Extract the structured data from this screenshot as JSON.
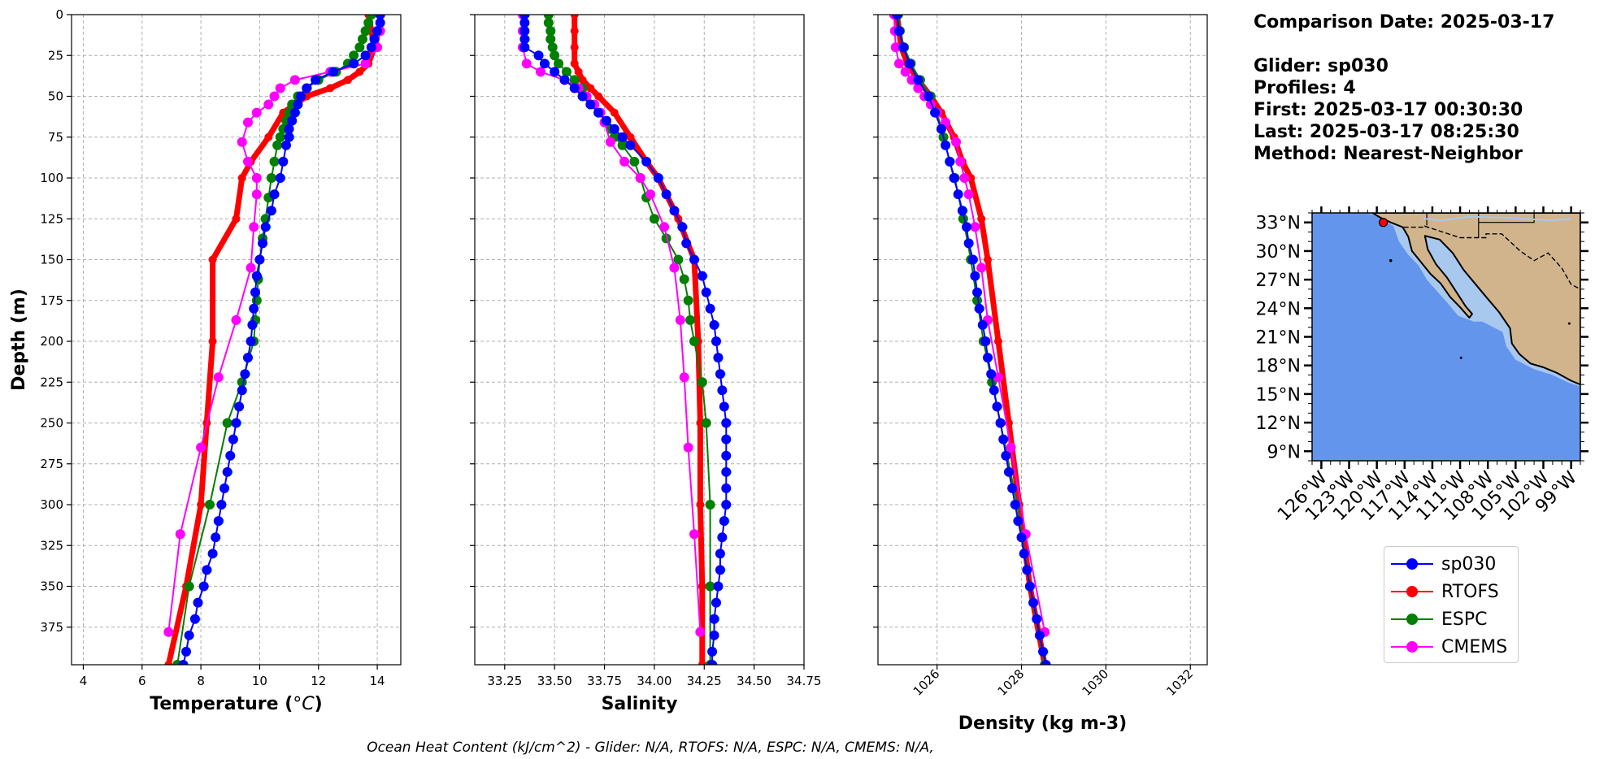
{
  "info": {
    "comparison": "Comparison Date: 2025-03-17",
    "glider": "Glider: sp030",
    "profiles": "Profiles: 4",
    "first": "First: 2025-03-17 00:30:30",
    "last": "Last: 2025-03-17 08:25:30",
    "method": "Method: Nearest-Neighbor"
  },
  "footer": "Ocean Heat Content (kJ/cm^2) - Glider: N/A,  RTOFS: N/A,  ESPC: N/A,  CMEMS: N/A,",
  "colors": {
    "sp030": "#0000ff",
    "RTOFS": "#ff0000",
    "ESPC": "#008000",
    "CMEMS": "#ff00ff",
    "raw": "#00ffff"
  },
  "legend": [
    {
      "name": "sp030",
      "color": "#0000ff"
    },
    {
      "name": "RTOFS",
      "color": "#ff0000"
    },
    {
      "name": "ESPC",
      "color": "#008000"
    },
    {
      "name": "CMEMS",
      "color": "#ff00ff"
    }
  ],
  "chart_data": [
    {
      "type": "line",
      "xlabel": "Temperature (°C)",
      "ylabel": "Depth (m)",
      "xlim": [
        3.6,
        14.8
      ],
      "ylim": [
        0,
        398
      ],
      "xticks": [
        4,
        6,
        8,
        10,
        12,
        14
      ],
      "yticks": [
        0,
        25,
        50,
        75,
        100,
        125,
        150,
        175,
        200,
        225,
        250,
        275,
        300,
        325,
        350,
        375
      ],
      "grid": true,
      "series": [
        {
          "name": "sp030",
          "depth": [
            0,
            5,
            10,
            15,
            20,
            25,
            30,
            35,
            40,
            45,
            50,
            55,
            60,
            65,
            70,
            75,
            80,
            90,
            100,
            110,
            120,
            130,
            140,
            150,
            160,
            170,
            180,
            190,
            200,
            210,
            220,
            230,
            240,
            250,
            260,
            270,
            280,
            290,
            300,
            310,
            320,
            330,
            340,
            350,
            360,
            370,
            380,
            390,
            398
          ],
          "values": [
            14.1,
            14.1,
            14.0,
            13.9,
            13.8,
            13.6,
            13.2,
            12.5,
            11.9,
            11.6,
            11.4,
            11.3,
            11.2,
            11.1,
            11.0,
            11.0,
            10.9,
            10.8,
            10.7,
            10.5,
            10.4,
            10.2,
            10.1,
            10.0,
            9.9,
            9.85,
            9.8,
            9.75,
            9.7,
            9.6,
            9.5,
            9.4,
            9.3,
            9.2,
            9.1,
            9.0,
            8.9,
            8.8,
            8.7,
            8.6,
            8.5,
            8.4,
            8.2,
            8.1,
            7.9,
            7.8,
            7.6,
            7.5,
            7.4
          ]
        },
        {
          "name": "RTOFS",
          "depth": [
            0,
            10,
            20,
            30,
            35,
            40,
            45,
            50,
            60,
            75,
            90,
            100,
            125,
            150,
            200,
            250,
            300,
            350,
            398
          ],
          "values": [
            13.7,
            13.8,
            13.9,
            13.7,
            13.4,
            13.0,
            12.4,
            11.6,
            10.8,
            10.3,
            9.7,
            9.4,
            9.2,
            8.4,
            8.4,
            8.2,
            8.0,
            7.5,
            6.9
          ]
        },
        {
          "name": "ESPC",
          "depth": [
            0,
            5,
            10,
            15,
            20,
            25,
            30,
            35,
            40,
            45,
            50,
            55,
            60,
            65,
            70,
            75,
            80,
            90,
            100,
            112,
            125,
            137,
            150,
            162,
            175,
            187,
            200,
            225,
            250,
            300,
            350,
            398
          ],
          "values": [
            13.8,
            13.7,
            13.6,
            13.5,
            13.4,
            13.2,
            13.0,
            12.6,
            12.0,
            11.6,
            11.3,
            11.1,
            11.0,
            10.9,
            10.8,
            10.7,
            10.6,
            10.5,
            10.4,
            10.3,
            10.2,
            10.1,
            10.0,
            9.95,
            9.9,
            9.85,
            9.8,
            9.4,
            8.9,
            8.3,
            7.6,
            7.2
          ]
        },
        {
          "name": "CMEMS",
          "depth": [
            0,
            10,
            20,
            30,
            35,
            40,
            45,
            50,
            55,
            60,
            66,
            78,
            90,
            100,
            110,
            130,
            155,
            187,
            222,
            265,
            318,
            378
          ],
          "values": [
            14.1,
            14.1,
            14.0,
            13.6,
            12.4,
            11.2,
            10.7,
            10.5,
            10.3,
            9.9,
            9.6,
            9.4,
            9.6,
            9.9,
            9.9,
            9.8,
            9.7,
            9.2,
            8.6,
            8.0,
            7.3,
            6.9
          ]
        }
      ]
    },
    {
      "type": "line",
      "xlabel": "Salinity",
      "xlim": [
        33.1,
        34.75
      ],
      "ylim": [
        0,
        398
      ],
      "xticks": [
        33.25,
        33.5,
        33.75,
        34.0,
        34.25,
        34.5,
        34.75
      ],
      "grid": true,
      "series": [
        {
          "name": "sp030",
          "depth": [
            0,
            5,
            10,
            15,
            20,
            25,
            30,
            35,
            40,
            45,
            50,
            55,
            60,
            65,
            70,
            75,
            80,
            90,
            100,
            110,
            120,
            130,
            140,
            150,
            160,
            170,
            180,
            190,
            200,
            210,
            220,
            230,
            240,
            250,
            260,
            270,
            280,
            290,
            300,
            310,
            320,
            330,
            340,
            350,
            360,
            370,
            380,
            390,
            398
          ],
          "values": [
            33.35,
            33.35,
            33.35,
            33.35,
            33.35,
            33.42,
            33.45,
            33.5,
            33.55,
            33.6,
            33.64,
            33.68,
            33.72,
            33.76,
            33.8,
            33.84,
            33.88,
            33.96,
            34.02,
            34.06,
            34.1,
            34.14,
            34.16,
            34.2,
            34.24,
            34.26,
            34.28,
            34.3,
            34.31,
            34.32,
            34.33,
            34.34,
            34.35,
            34.36,
            34.36,
            34.36,
            34.36,
            34.36,
            34.36,
            34.35,
            34.34,
            34.33,
            34.33,
            34.32,
            34.31,
            34.3,
            34.3,
            34.29,
            34.29
          ]
        },
        {
          "name": "RTOFS",
          "depth": [
            0,
            10,
            20,
            30,
            35,
            40,
            45,
            50,
            60,
            75,
            90,
            100,
            125,
            150,
            200,
            250,
            300,
            350,
            398
          ],
          "values": [
            33.6,
            33.6,
            33.6,
            33.6,
            33.62,
            33.64,
            33.68,
            33.72,
            33.8,
            33.88,
            33.96,
            34.02,
            34.12,
            34.2,
            34.22,
            34.23,
            34.23,
            34.24,
            34.24
          ]
        },
        {
          "name": "ESPC",
          "depth": [
            0,
            5,
            10,
            15,
            20,
            25,
            30,
            35,
            40,
            45,
            50,
            55,
            60,
            65,
            70,
            75,
            80,
            90,
            100,
            112,
            125,
            137,
            150,
            162,
            175,
            187,
            200,
            225,
            250,
            300,
            350,
            398
          ],
          "values": [
            33.47,
            33.47,
            33.48,
            33.48,
            33.49,
            33.5,
            33.52,
            33.56,
            33.6,
            33.64,
            33.66,
            33.68,
            33.72,
            33.76,
            33.78,
            33.8,
            33.84,
            33.9,
            33.93,
            33.96,
            34.0,
            34.06,
            34.12,
            34.15,
            34.17,
            34.18,
            34.2,
            34.24,
            34.26,
            34.28,
            34.28,
            34.28
          ]
        },
        {
          "name": "CMEMS",
          "depth": [
            0,
            10,
            20,
            30,
            35,
            40,
            45,
            50,
            55,
            60,
            66,
            78,
            90,
            100,
            110,
            130,
            155,
            187,
            222,
            265,
            318,
            378
          ],
          "values": [
            33.34,
            33.34,
            33.34,
            33.36,
            33.43,
            33.55,
            33.62,
            33.66,
            33.7,
            33.73,
            33.75,
            33.78,
            33.85,
            33.93,
            33.98,
            34.05,
            34.1,
            34.13,
            34.15,
            34.17,
            34.2,
            34.23
          ]
        }
      ]
    },
    {
      "type": "line",
      "xlabel": "Density (kg m-3)",
      "xlim": [
        1024.6,
        1032.4
      ],
      "ylim": [
        0,
        398
      ],
      "xticks": [
        1026,
        1028,
        1030,
        1032
      ],
      "grid": true,
      "series": [
        {
          "name": "sp030",
          "depth": [
            0,
            10,
            20,
            30,
            40,
            50,
            60,
            70,
            80,
            90,
            100,
            110,
            120,
            130,
            140,
            150,
            160,
            170,
            180,
            190,
            200,
            210,
            220,
            230,
            240,
            250,
            260,
            270,
            280,
            290,
            300,
            310,
            320,
            330,
            340,
            350,
            360,
            370,
            380,
            390,
            398
          ],
          "values": [
            1025.05,
            1025.1,
            1025.2,
            1025.35,
            1025.55,
            1025.8,
            1025.95,
            1026.1,
            1026.2,
            1026.3,
            1026.4,
            1026.5,
            1026.6,
            1026.7,
            1026.75,
            1026.85,
            1026.9,
            1026.95,
            1027.0,
            1027.08,
            1027.15,
            1027.2,
            1027.28,
            1027.35,
            1027.42,
            1027.5,
            1027.57,
            1027.63,
            1027.7,
            1027.78,
            1027.85,
            1027.92,
            1028.0,
            1028.06,
            1028.13,
            1028.2,
            1028.28,
            1028.36,
            1028.43,
            1028.51,
            1028.58
          ]
        },
        {
          "name": "RTOFS",
          "depth": [
            0,
            10,
            20,
            30,
            40,
            50,
            60,
            75,
            90,
            100,
            125,
            150,
            200,
            250,
            300,
            350,
            398
          ],
          "values": [
            1025.05,
            1025.1,
            1025.15,
            1025.3,
            1025.55,
            1025.85,
            1026.1,
            1026.4,
            1026.6,
            1026.8,
            1027.05,
            1027.2,
            1027.45,
            1027.7,
            1027.95,
            1028.2,
            1028.55
          ]
        },
        {
          "name": "ESPC",
          "depth": [
            0,
            10,
            20,
            30,
            40,
            50,
            60,
            75,
            90,
            100,
            125,
            150,
            175,
            200,
            225,
            250,
            300,
            350,
            398
          ],
          "values": [
            1025.08,
            1025.12,
            1025.22,
            1025.38,
            1025.6,
            1025.85,
            1026.0,
            1026.15,
            1026.3,
            1026.42,
            1026.62,
            1026.8,
            1026.95,
            1027.1,
            1027.3,
            1027.5,
            1027.9,
            1028.2,
            1028.55
          ]
        },
        {
          "name": "CMEMS",
          "depth": [
            0,
            10,
            20,
            30,
            35,
            40,
            45,
            50,
            55,
            60,
            66,
            78,
            90,
            100,
            110,
            130,
            155,
            187,
            222,
            265,
            318,
            378
          ],
          "values": [
            1024.98,
            1025.0,
            1025.02,
            1025.1,
            1025.25,
            1025.4,
            1025.55,
            1025.7,
            1025.85,
            1026.0,
            1026.2,
            1026.45,
            1026.55,
            1026.65,
            1026.75,
            1026.9,
            1027.05,
            1027.2,
            1027.45,
            1027.75,
            1028.1,
            1028.55
          ]
        }
      ]
    },
    {
      "type": "map",
      "lat_ticks": [
        "9°N",
        "12°N",
        "15°N",
        "18°N",
        "21°N",
        "24°N",
        "27°N",
        "30°N",
        "33°N"
      ],
      "lon_ticks": [
        "126°W",
        "123°W",
        "120°W",
        "117°W",
        "114°W",
        "111°W",
        "108°W",
        "105°W",
        "102°W",
        "99°W"
      ],
      "lat_range": [
        8,
        34
      ],
      "lon_range": [
        -127,
        -98
      ],
      "glider_position": {
        "lat": 33.0,
        "lon": -119.3
      }
    }
  ]
}
